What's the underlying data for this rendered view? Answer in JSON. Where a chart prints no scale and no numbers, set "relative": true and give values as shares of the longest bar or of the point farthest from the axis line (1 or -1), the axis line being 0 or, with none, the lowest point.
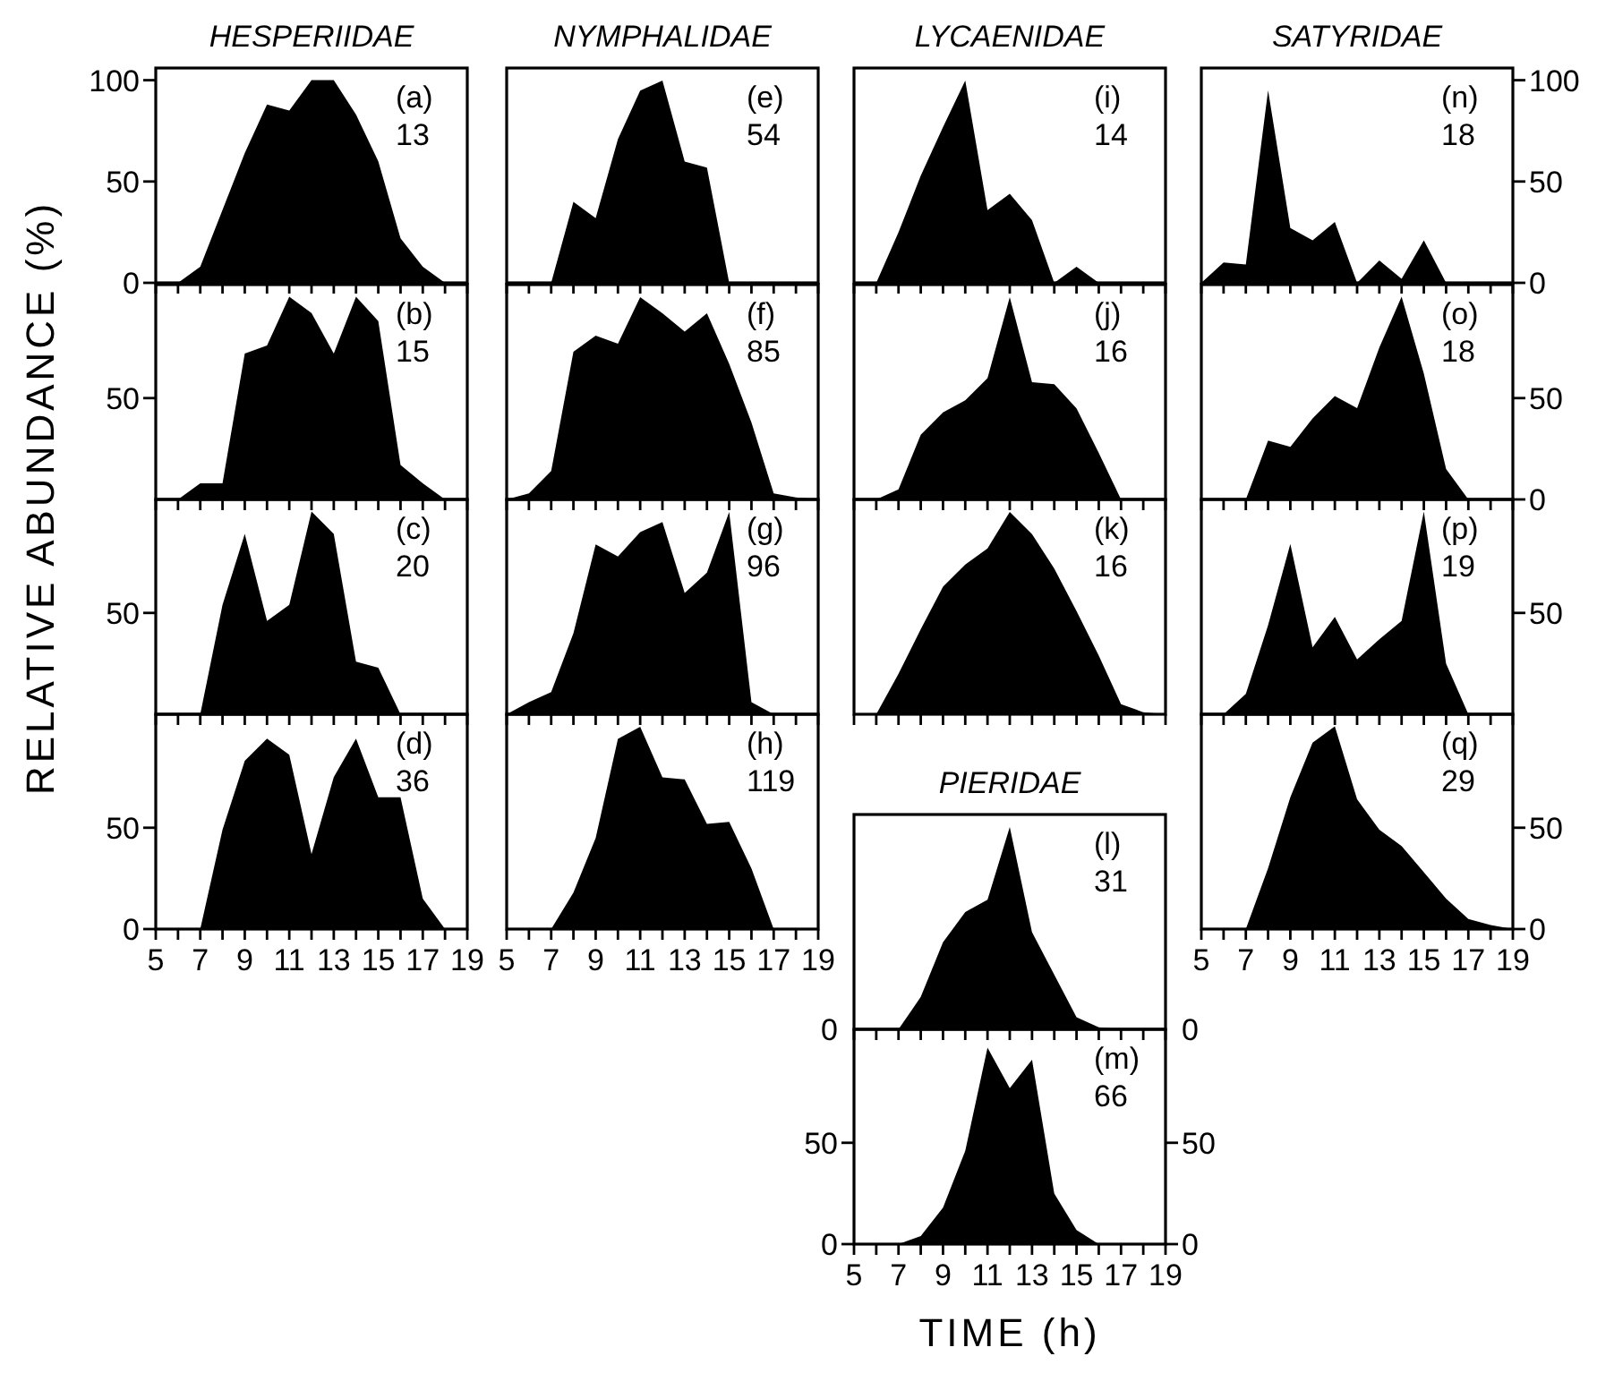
{
  "chart_data": [
    {
      "type": "area",
      "title": "HESPERIIDAE",
      "ylabel": "RELATIVE ABUNDANCE (%)",
      "x": [
        6,
        7,
        8,
        9,
        10,
        11,
        12,
        13,
        14,
        15,
        16,
        17,
        18
      ],
      "values": [
        0,
        8,
        36,
        64,
        88,
        85,
        100,
        100,
        83,
        60,
        22,
        8,
        0
      ],
      "color": "#000000",
      "xlim": [
        5,
        19
      ],
      "xticks": [
        5,
        {
          "value": 6,
          "label": null
        },
        7,
        {
          "value": 8,
          "label": null
        },
        9,
        {
          "value": 10,
          "label": null
        },
        11,
        {
          "value": 12,
          "label": null
        },
        13,
        {
          "value": 14,
          "label": null
        },
        15,
        {
          "value": 16,
          "label": null
        },
        17,
        {
          "value": 18,
          "label": null
        },
        19
      ],
      "ylim": [
        0,
        106
      ],
      "yticks": [
        0,
        50,
        100
      ],
      "tick_labels": "y",
      "annotations": [
        "(a)",
        "13"
      ]
    },
    {
      "type": "area",
      "x": [
        6,
        7,
        8,
        9,
        10,
        11,
        12,
        13,
        14,
        15,
        16,
        17,
        18
      ],
      "values": [
        0,
        8,
        8,
        72,
        76,
        100,
        92,
        72,
        100,
        88,
        17,
        8,
        0
      ],
      "color": "#000000",
      "xlim": [
        5,
        19
      ],
      "xticks": [
        5,
        {
          "value": 6,
          "label": null
        },
        7,
        {
          "value": 8,
          "label": null
        },
        9,
        {
          "value": 10,
          "label": null
        },
        11,
        {
          "value": 12,
          "label": null
        },
        13,
        {
          "value": 14,
          "label": null
        },
        15,
        {
          "value": 16,
          "label": null
        },
        17,
        {
          "value": 18,
          "label": null
        },
        19
      ],
      "ylim": [
        0,
        106
      ],
      "yticks": [
        50
      ],
      "tick_labels": "y",
      "annotations": [
        "(b)",
        "15"
      ]
    },
    {
      "type": "area",
      "x": [
        7,
        8,
        9,
        10,
        11,
        12,
        13,
        14,
        15,
        16
      ],
      "values": [
        0,
        54,
        89,
        46,
        54,
        100,
        89,
        26,
        23,
        0
      ],
      "color": "#000000",
      "xlim": [
        5,
        19
      ],
      "xticks": [
        5,
        {
          "value": 6,
          "label": null
        },
        7,
        {
          "value": 8,
          "label": null
        },
        9,
        {
          "value": 10,
          "label": null
        },
        11,
        {
          "value": 12,
          "label": null
        },
        13,
        {
          "value": 14,
          "label": null
        },
        15,
        {
          "value": 16,
          "label": null
        },
        17,
        {
          "value": 18,
          "label": null
        },
        19
      ],
      "ylim": [
        0,
        106
      ],
      "yticks": [
        50
      ],
      "tick_labels": "y",
      "annotations": [
        "(c)",
        "20"
      ]
    },
    {
      "type": "area",
      "x": [
        7,
        8,
        9,
        10,
        11,
        12,
        13,
        14,
        15,
        16,
        17,
        18
      ],
      "values": [
        0,
        49,
        83,
        94,
        86,
        37,
        75,
        94,
        65,
        65,
        15,
        0
      ],
      "color": "#000000",
      "xlim": [
        5,
        19
      ],
      "xticks": [
        5,
        {
          "value": 6,
          "label": null
        },
        7,
        {
          "value": 8,
          "label": null
        },
        9,
        {
          "value": 10,
          "label": null
        },
        11,
        {
          "value": 12,
          "label": null
        },
        13,
        {
          "value": 14,
          "label": null
        },
        15,
        {
          "value": 16,
          "label": null
        },
        17,
        {
          "value": 18,
          "label": null
        },
        19
      ],
      "ylim": [
        0,
        106
      ],
      "yticks": [
        0,
        50
      ],
      "annotations": [
        "(d)",
        "36"
      ]
    },
    {
      "type": "area",
      "title": "NYMPHALIDAE",
      "relative": true,
      "x": [
        7,
        8,
        9,
        10,
        11,
        12,
        13,
        14,
        15
      ],
      "values": [
        0,
        0.4,
        0.32,
        0.71,
        0.95,
        1,
        0.6,
        0.57,
        0
      ],
      "color": "#000000",
      "xlim": [
        5,
        19
      ],
      "xticks": [
        5,
        {
          "value": 6,
          "label": null
        },
        7,
        {
          "value": 8,
          "label": null
        },
        9,
        {
          "value": 10,
          "label": null
        },
        11,
        {
          "value": 12,
          "label": null
        },
        13,
        {
          "value": 14,
          "label": null
        },
        15,
        {
          "value": 16,
          "label": null
        },
        17,
        {
          "value": 18,
          "label": null
        },
        19
      ],
      "tick_labels": false,
      "annotations": [
        "(e)",
        "54"
      ]
    },
    {
      "type": "area",
      "relative": true,
      "x": [
        5,
        6,
        7,
        8,
        9,
        10,
        11,
        12,
        13,
        14,
        15,
        16,
        17,
        18,
        19
      ],
      "values": [
        0,
        0.03,
        0.14,
        0.73,
        0.81,
        0.77,
        1,
        0.92,
        0.83,
        0.92,
        0.67,
        0.38,
        0.03,
        0.01,
        0
      ],
      "color": "#000000",
      "xlim": [
        5,
        19
      ],
      "xticks": [
        5,
        {
          "value": 6,
          "label": null
        },
        7,
        {
          "value": 8,
          "label": null
        },
        9,
        {
          "value": 10,
          "label": null
        },
        11,
        {
          "value": 12,
          "label": null
        },
        13,
        {
          "value": 14,
          "label": null
        },
        15,
        {
          "value": 16,
          "label": null
        },
        17,
        {
          "value": 18,
          "label": null
        },
        19
      ],
      "tick_labels": false,
      "annotations": [
        "(f)",
        "85"
      ]
    },
    {
      "type": "area",
      "relative": true,
      "x": [
        5,
        6,
        7,
        8,
        9,
        10,
        11,
        12,
        13,
        14,
        15,
        16,
        17
      ],
      "values": [
        0,
        0.06,
        0.11,
        0.4,
        0.84,
        0.78,
        0.9,
        0.95,
        0.6,
        0.7,
        1,
        0.06,
        0
      ],
      "color": "#000000",
      "xlim": [
        5,
        19
      ],
      "xticks": [
        5,
        {
          "value": 6,
          "label": null
        },
        7,
        {
          "value": 8,
          "label": null
        },
        9,
        {
          "value": 10,
          "label": null
        },
        11,
        {
          "value": 12,
          "label": null
        },
        13,
        {
          "value": 14,
          "label": null
        },
        15,
        {
          "value": 16,
          "label": null
        },
        17,
        {
          "value": 18,
          "label": null
        },
        19
      ],
      "tick_labels": false,
      "annotations": [
        "(g)",
        "96"
      ]
    },
    {
      "type": "area",
      "relative": true,
      "x": [
        7,
        8,
        9,
        10,
        11,
        12,
        13,
        14,
        15,
        16,
        17
      ],
      "values": [
        0,
        0.18,
        0.45,
        0.94,
        1,
        0.75,
        0.74,
        0.52,
        0.53,
        0.3,
        0
      ],
      "color": "#000000",
      "xlim": [
        5,
        19
      ],
      "xticks": [
        5,
        {
          "value": 6,
          "label": null
        },
        7,
        {
          "value": 8,
          "label": null
        },
        9,
        {
          "value": 10,
          "label": null
        },
        11,
        {
          "value": 12,
          "label": null
        },
        13,
        {
          "value": 14,
          "label": null
        },
        15,
        {
          "value": 16,
          "label": null
        },
        17,
        {
          "value": 18,
          "label": null
        },
        19
      ],
      "tick_labels": "x",
      "annotations": [
        "(h)",
        "119"
      ]
    },
    {
      "type": "area",
      "title": "LYCAENIDAE",
      "relative": true,
      "x": [
        6,
        7,
        8,
        9,
        10,
        11,
        12,
        13,
        14,
        15,
        16
      ],
      "values": [
        0,
        0.25,
        0.53,
        0.77,
        1,
        0.36,
        0.44,
        0.31,
        0,
        0.08,
        0
      ],
      "color": "#000000",
      "xlim": [
        5,
        19
      ],
      "xticks": [
        5,
        {
          "value": 6,
          "label": null
        },
        7,
        {
          "value": 8,
          "label": null
        },
        9,
        {
          "value": 10,
          "label": null
        },
        11,
        {
          "value": 12,
          "label": null
        },
        13,
        {
          "value": 14,
          "label": null
        },
        15,
        {
          "value": 16,
          "label": null
        },
        17,
        {
          "value": 18,
          "label": null
        },
        19
      ],
      "tick_labels": false,
      "annotations": [
        "(i)",
        "14"
      ]
    },
    {
      "type": "area",
      "relative": true,
      "x": [
        6,
        7,
        8,
        9,
        10,
        11,
        12,
        13,
        14,
        15,
        16,
        17
      ],
      "values": [
        0,
        0.05,
        0.32,
        0.43,
        0.49,
        0.6,
        1,
        0.58,
        0.57,
        0.45,
        0.23,
        0
      ],
      "color": "#000000",
      "xlim": [
        5,
        19
      ],
      "xticks": [
        5,
        {
          "value": 6,
          "label": null
        },
        7,
        {
          "value": 8,
          "label": null
        },
        9,
        {
          "value": 10,
          "label": null
        },
        11,
        {
          "value": 12,
          "label": null
        },
        13,
        {
          "value": 14,
          "label": null
        },
        15,
        {
          "value": 16,
          "label": null
        },
        17,
        {
          "value": 18,
          "label": null
        },
        19
      ],
      "tick_labels": false,
      "annotations": [
        "(j)",
        "16"
      ]
    },
    {
      "type": "area",
      "relative": true,
      "x": [
        6,
        7,
        8,
        9,
        10,
        11,
        12,
        13,
        14,
        15,
        16,
        17,
        18,
        19
      ],
      "values": [
        0,
        0.2,
        0.42,
        0.63,
        0.74,
        0.82,
        1,
        0.89,
        0.72,
        0.51,
        0.29,
        0.05,
        0.01,
        0
      ],
      "color": "#000000",
      "xlim": [
        5,
        19
      ],
      "xticks": [
        5,
        {
          "value": 6,
          "label": null
        },
        7,
        {
          "value": 8,
          "label": null
        },
        9,
        {
          "value": 10,
          "label": null
        },
        11,
        {
          "value": 12,
          "label": null
        },
        13,
        {
          "value": 14,
          "label": null
        },
        15,
        {
          "value": 16,
          "label": null
        },
        17,
        {
          "value": 18,
          "label": null
        },
        19
      ],
      "tick_labels": false,
      "annotations": [
        "(k)",
        "16"
      ]
    },
    {
      "type": "area",
      "title": "PIERIDAE",
      "relative": true,
      "x": [
        7,
        8,
        9,
        10,
        11,
        12,
        13,
        14,
        15,
        16,
        17
      ],
      "values": [
        0,
        0.16,
        0.43,
        0.58,
        0.64,
        1,
        0.48,
        0.27,
        0.06,
        0.01,
        0
      ],
      "color": "#000000",
      "xlim": [
        5,
        19
      ],
      "xticks": [
        5,
        {
          "value": 6,
          "label": null
        },
        7,
        {
          "value": 8,
          "label": null
        },
        9,
        {
          "value": 10,
          "label": null
        },
        11,
        {
          "value": 12,
          "label": null
        },
        13,
        {
          "value": 14,
          "label": null
        },
        15,
        {
          "value": 16,
          "label": null
        },
        17,
        {
          "value": 18,
          "label": null
        },
        19
      ],
      "tick_labels": false,
      "annotations": [
        "(l)",
        "31",
        "0",
        "0"
      ]
    },
    {
      "type": "area",
      "xlabel": "TIME (h)",
      "x": [
        5,
        7,
        8,
        9,
        10,
        11,
        12,
        13,
        14,
        15,
        16
      ],
      "values": [
        0,
        0,
        4,
        18,
        46,
        97,
        77,
        91,
        25,
        7,
        0
      ],
      "color": "#000000",
      "xlim": [
        5,
        19
      ],
      "xticks": [
        5,
        {
          "value": 6,
          "label": null
        },
        7,
        {
          "value": 8,
          "label": null
        },
        9,
        {
          "value": 10,
          "label": null
        },
        11,
        {
          "value": 12,
          "label": null
        },
        13,
        {
          "value": 14,
          "label": null
        },
        15,
        {
          "value": 16,
          "label": null
        },
        17,
        {
          "value": 18,
          "label": null
        },
        19
      ],
      "ylim": [
        0,
        106
      ],
      "yticks": [
        0,
        50
      ],
      "y2lim": [
        0,
        106
      ],
      "y2ticks": [
        0,
        50
      ],
      "annotations": [
        "(m)",
        "66"
      ]
    },
    {
      "type": "area",
      "title": "SATYRIDAE",
      "x": [
        5,
        6,
        7,
        8,
        9,
        10,
        11,
        12,
        13,
        14,
        15,
        16
      ],
      "series": [
        {
          "color": "#000000",
          "axis": "y2",
          "values": [
            0,
            10,
            9,
            95,
            27,
            21,
            30,
            0,
            11,
            2,
            21,
            0
          ]
        }
      ],
      "xlim": [
        5,
        19
      ],
      "xticks": [
        5,
        {
          "value": 6,
          "label": null
        },
        7,
        {
          "value": 8,
          "label": null
        },
        9,
        {
          "value": 10,
          "label": null
        },
        11,
        {
          "value": 12,
          "label": null
        },
        13,
        {
          "value": 14,
          "label": null
        },
        15,
        {
          "value": 16,
          "label": null
        },
        17,
        {
          "value": 18,
          "label": null
        },
        19
      ],
      "y2lim": [
        0,
        106
      ],
      "y2ticks": [
        0,
        50,
        100
      ],
      "tick_labels": "y",
      "annotations": [
        "(n)",
        "18"
      ]
    },
    {
      "type": "area",
      "x": [
        7,
        8,
        9,
        10,
        11,
        12,
        13,
        14,
        15,
        16,
        17
      ],
      "series": [
        {
          "color": "#000000",
          "axis": "y2",
          "values": [
            0,
            29,
            26,
            40,
            51,
            45,
            75,
            100,
            62,
            15,
            0
          ]
        }
      ],
      "xlim": [
        5,
        19
      ],
      "xticks": [
        5,
        {
          "value": 6,
          "label": null
        },
        7,
        {
          "value": 8,
          "label": null
        },
        9,
        {
          "value": 10,
          "label": null
        },
        11,
        {
          "value": 12,
          "label": null
        },
        13,
        {
          "value": 14,
          "label": null
        },
        15,
        {
          "value": 16,
          "label": null
        },
        17,
        {
          "value": 18,
          "label": null
        },
        19
      ],
      "y2lim": [
        0,
        106
      ],
      "y2ticks": [
        0,
        50
      ],
      "tick_labels": "y",
      "annotations": [
        "(o)",
        "18"
      ]
    },
    {
      "type": "area",
      "x": [
        6,
        7,
        8,
        9,
        10,
        11,
        12,
        13,
        14,
        15,
        16,
        17
      ],
      "series": [
        {
          "color": "#000000",
          "axis": "y2",
          "values": [
            0,
            10,
            44,
            84,
            33,
            48,
            27,
            37,
            46,
            100,
            25,
            0
          ]
        }
      ],
      "xlim": [
        5,
        19
      ],
      "xticks": [
        5,
        {
          "value": 6,
          "label": null
        },
        7,
        {
          "value": 8,
          "label": null
        },
        9,
        {
          "value": 10,
          "label": null
        },
        11,
        {
          "value": 12,
          "label": null
        },
        13,
        {
          "value": 14,
          "label": null
        },
        15,
        {
          "value": 16,
          "label": null
        },
        17,
        {
          "value": 18,
          "label": null
        },
        19
      ],
      "y2lim": [
        0,
        106
      ],
      "y2ticks": [
        50
      ],
      "tick_labels": "y",
      "annotations": [
        "(p)",
        "19"
      ]
    },
    {
      "type": "area",
      "x": [
        7,
        8,
        9,
        10,
        11,
        12,
        13,
        14,
        15,
        16,
        17,
        18,
        19
      ],
      "series": [
        {
          "color": "#000000",
          "axis": "y2",
          "values": [
            0,
            30,
            65,
            92,
            100,
            64,
            49,
            41,
            28,
            15,
            5,
            2,
            0
          ]
        }
      ],
      "xlim": [
        5,
        19
      ],
      "xticks": [
        5,
        {
          "value": 6,
          "label": null
        },
        7,
        {
          "value": 8,
          "label": null
        },
        9,
        {
          "value": 10,
          "label": null
        },
        11,
        {
          "value": 12,
          "label": null
        },
        13,
        {
          "value": 14,
          "label": null
        },
        15,
        {
          "value": 16,
          "label": null
        },
        17,
        {
          "value": 18,
          "label": null
        },
        19
      ],
      "y2lim": [
        0,
        106
      ],
      "y2ticks": [
        0,
        50
      ],
      "annotations": [
        "(q)",
        "29"
      ]
    }
  ]
}
